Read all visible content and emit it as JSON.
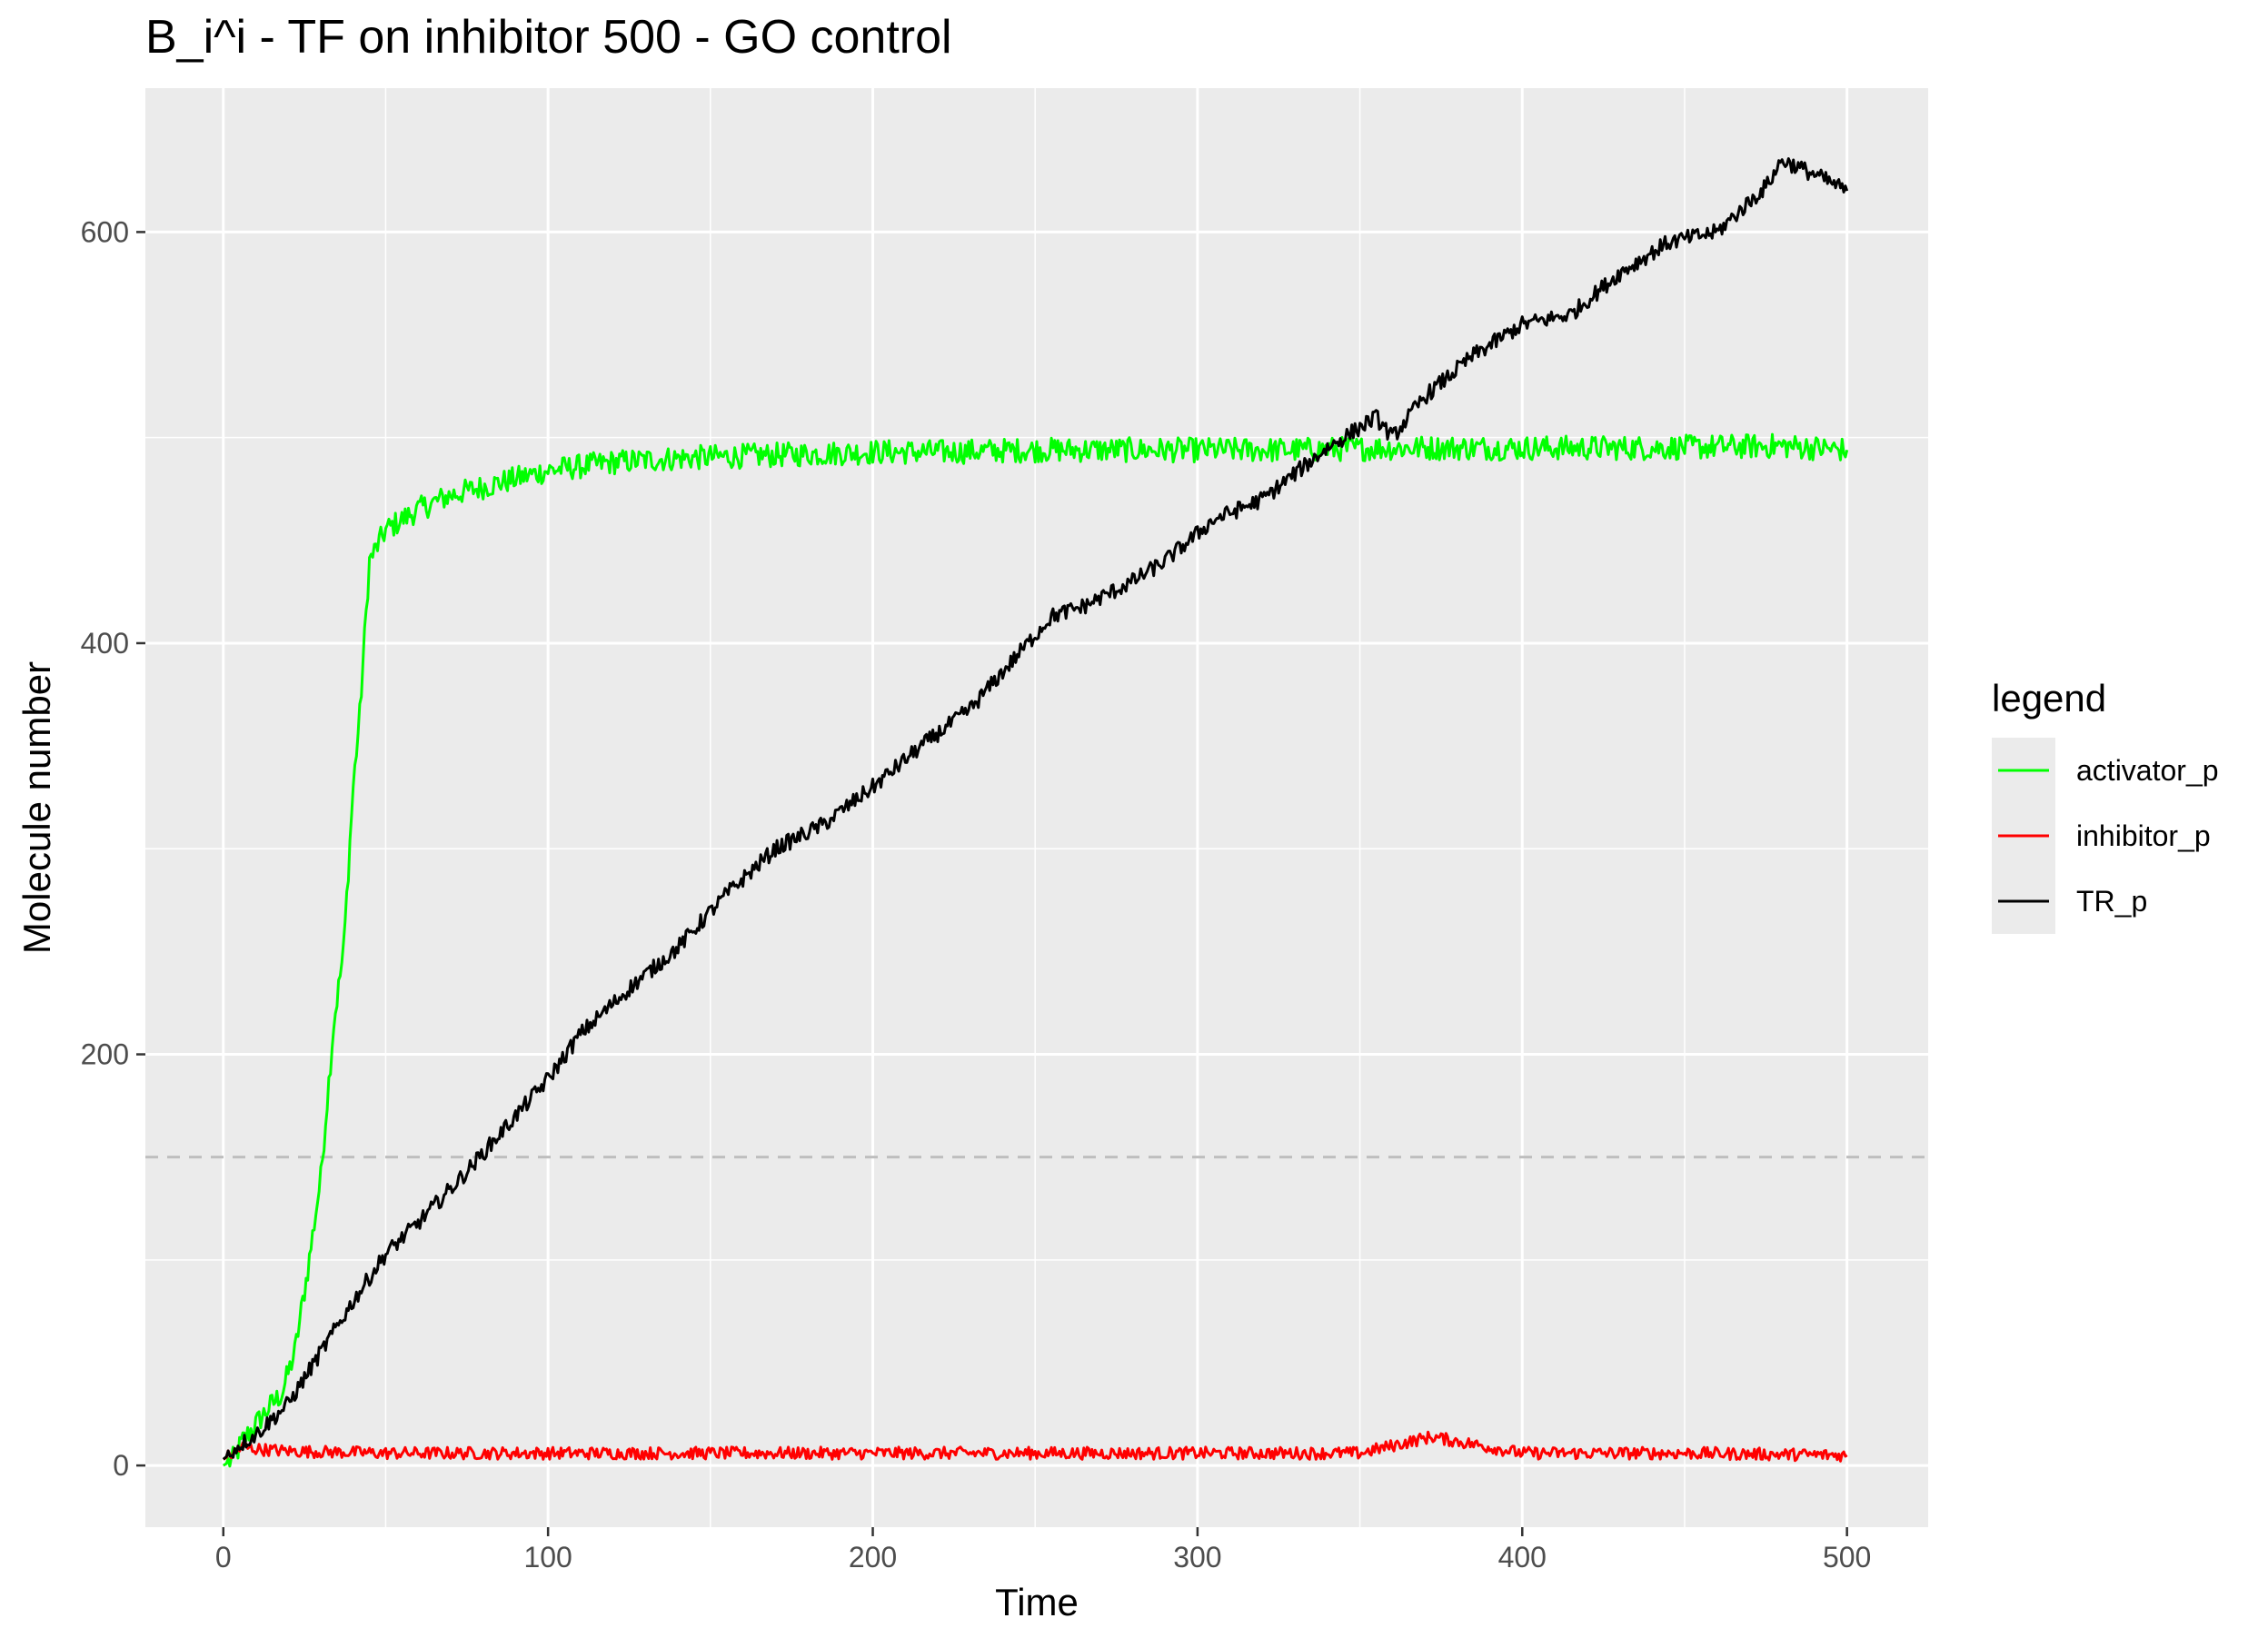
{
  "chart_data": {
    "type": "line",
    "title": "B_i^i - TF on inhibitor 500 - GO control",
    "xlabel": "Time",
    "ylabel": "Molecule number",
    "xlim": [
      -24,
      525
    ],
    "ylim": [
      -30,
      670
    ],
    "x_ticks": [
      0,
      100,
      200,
      300,
      400,
      500
    ],
    "y_ticks": [
      0,
      200,
      400,
      600
    ],
    "x_tick_labels": [
      "0",
      "100",
      "200",
      "300",
      "400",
      "500"
    ],
    "y_tick_labels": [
      "0",
      "200",
      "400",
      "600"
    ],
    "reference_line": {
      "y": 150,
      "style": "dashed",
      "color": "#bebebe"
    },
    "grid": true,
    "legend": {
      "title": "legend",
      "position": "right"
    },
    "colors": {
      "panel": "#ebebeb",
      "grid": "#ffffff"
    },
    "series": [
      {
        "name": "activator_p",
        "color": "#00ff00",
        "x": [
          0,
          3,
          6,
          10,
          14,
          18,
          22,
          26,
          30,
          34,
          37,
          40,
          42,
          45,
          50,
          55,
          60,
          70,
          80,
          90,
          100,
          110,
          120,
          140,
          160,
          180,
          200,
          220,
          250,
          280,
          300,
          330,
          360,
          400,
          440,
          480,
          500
        ],
        "y": [
          0,
          3,
          12,
          20,
          28,
          35,
          55,
          95,
          140,
          215,
          250,
          330,
          365,
          440,
          455,
          460,
          465,
          472,
          476,
          480,
          484,
          486,
          488,
          490,
          491,
          492,
          493,
          493,
          494,
          494,
          494,
          494,
          495,
          495,
          495,
          496,
          494
        ]
      },
      {
        "name": "inhibitor_p",
        "color": "#ff0000",
        "x": [
          0,
          3,
          6,
          10,
          20,
          50,
          100,
          150,
          200,
          250,
          300,
          350,
          372,
          400,
          450,
          500
        ],
        "y": [
          3,
          6,
          9,
          8,
          7,
          6,
          6,
          6,
          6,
          6,
          6,
          6,
          14,
          6,
          6,
          5
        ]
      },
      {
        "name": "TR_p",
        "color": "#000000",
        "x": [
          0,
          5,
          10,
          20,
          30,
          40,
          50,
          60,
          75,
          90,
          100,
          110,
          125,
          140,
          155,
          170,
          185,
          200,
          215,
          230,
          245,
          255,
          265,
          280,
          290,
          305,
          320,
          340,
          355,
          360,
          370,
          385,
          400,
          415,
          430,
          445,
          460,
          475,
          480,
          490,
          500
        ],
        "y": [
          3,
          10,
          15,
          30,
          55,
          80,
          103,
          118,
          143,
          170,
          188,
          210,
          232,
          252,
          278,
          300,
          312,
          330,
          350,
          368,
          395,
          413,
          418,
          430,
          440,
          460,
          470,
          495,
          510,
          500,
          520,
          540,
          555,
          560,
          580,
          595,
          600,
          622,
          635,
          628,
          620
        ]
      }
    ]
  }
}
